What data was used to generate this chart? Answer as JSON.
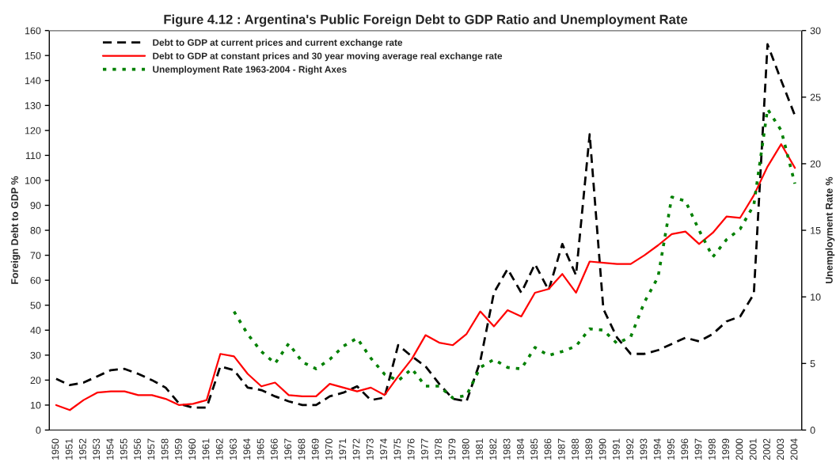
{
  "chart_data": {
    "type": "line",
    "title": "Figure 4.12 : Argentina's Public Foreign Debt to GDP Ratio and Unemployment Rate",
    "ylabel": "Foreign Debt to GDP %",
    "y2label": "Unemployment Rate %",
    "categories": [
      "1950",
      "1951",
      "1952",
      "1953",
      "1954",
      "1955",
      "1956",
      "1957",
      "1958",
      "1959",
      "1960",
      "1961",
      "1962",
      "1963",
      "1964",
      "1965",
      "1966",
      "1967",
      "1968",
      "1969",
      "1970",
      "1971",
      "1972",
      "1973",
      "1974",
      "1975",
      "1976",
      "1977",
      "1978",
      "1979",
      "1980",
      "1981",
      "1982",
      "1983",
      "1984",
      "1985",
      "1986",
      "1987",
      "1988",
      "1989",
      "1990",
      "1991",
      "1992",
      "1993",
      "1994",
      "1995",
      "1996",
      "1997",
      "1998",
      "1999",
      "2000",
      "2001",
      "2002",
      "2003",
      "2004"
    ],
    "ylim": [
      0,
      160
    ],
    "yticks": [
      0,
      10,
      20,
      30,
      40,
      50,
      60,
      70,
      80,
      90,
      100,
      110,
      120,
      130,
      140,
      150,
      160
    ],
    "y2lim": [
      0,
      30
    ],
    "y2ticks": [
      0,
      5,
      10,
      15,
      20,
      25,
      30
    ],
    "legend": "top left",
    "grid": false,
    "series": [
      {
        "name": "Debt to GDP at current prices and current exchange rate",
        "color": "#000000",
        "line_style": "dashed",
        "values": [
          20.5,
          18,
          19,
          21.5,
          24,
          24.5,
          22.5,
          20,
          17,
          10.5,
          9,
          9,
          25.5,
          24,
          17,
          16,
          13.5,
          11.5,
          10,
          10,
          13.5,
          15,
          17.5,
          12,
          13,
          34,
          29.5,
          25.5,
          18.5,
          12.5,
          11.5,
          27.5,
          55,
          64.5,
          55,
          66.5,
          56,
          74.5,
          62,
          118.5,
          48.5,
          37,
          30.5,
          30.5,
          32,
          34.5,
          37,
          35.5,
          38.5,
          43.5,
          45.5,
          54.5,
          154.5,
          140,
          126
        ]
      },
      {
        "name": "Debt to GDP at constant prices and 30 year moving average real exchange rate",
        "color": "#ff0000",
        "line_style": "solid",
        "values": [
          10,
          8,
          12,
          15,
          15.5,
          15.5,
          14,
          14,
          12.5,
          10,
          10.5,
          12,
          30.5,
          29.5,
          22.5,
          17.5,
          19,
          14,
          13.5,
          13.5,
          18.5,
          17,
          15.5,
          17,
          14,
          21.5,
          28.5,
          38,
          35,
          34,
          38.5,
          47.5,
          41.5,
          48,
          45.5,
          55,
          56.5,
          62.5,
          55,
          67.5,
          67,
          66.5,
          66.5,
          70,
          74,
          78.5,
          79.5,
          74.5,
          79,
          85.5,
          85,
          94,
          105.5,
          114.5,
          105
        ]
      },
      {
        "name": "Unemployment Rate 1963-2004 - Right Axes",
        "color": "#008000",
        "line_style": "dotted",
        "axis": "y2",
        "values": [
          null,
          null,
          null,
          null,
          null,
          null,
          null,
          null,
          null,
          null,
          null,
          null,
          null,
          8.9,
          7.2,
          5.9,
          5.0,
          6.5,
          5.1,
          4.6,
          5.3,
          6.3,
          6.9,
          5.4,
          4.2,
          3.7,
          4.6,
          3.3,
          3.3,
          2.4,
          2.6,
          4.7,
          5.3,
          4.7,
          4.6,
          6.2,
          5.6,
          5.9,
          6.3,
          7.6,
          7.5,
          6.5,
          7.0,
          9.6,
          11.5,
          17.5,
          17.2,
          15,
          13,
          14.3,
          15.1,
          16.9,
          24.1,
          22.5,
          18.5
        ]
      }
    ]
  }
}
